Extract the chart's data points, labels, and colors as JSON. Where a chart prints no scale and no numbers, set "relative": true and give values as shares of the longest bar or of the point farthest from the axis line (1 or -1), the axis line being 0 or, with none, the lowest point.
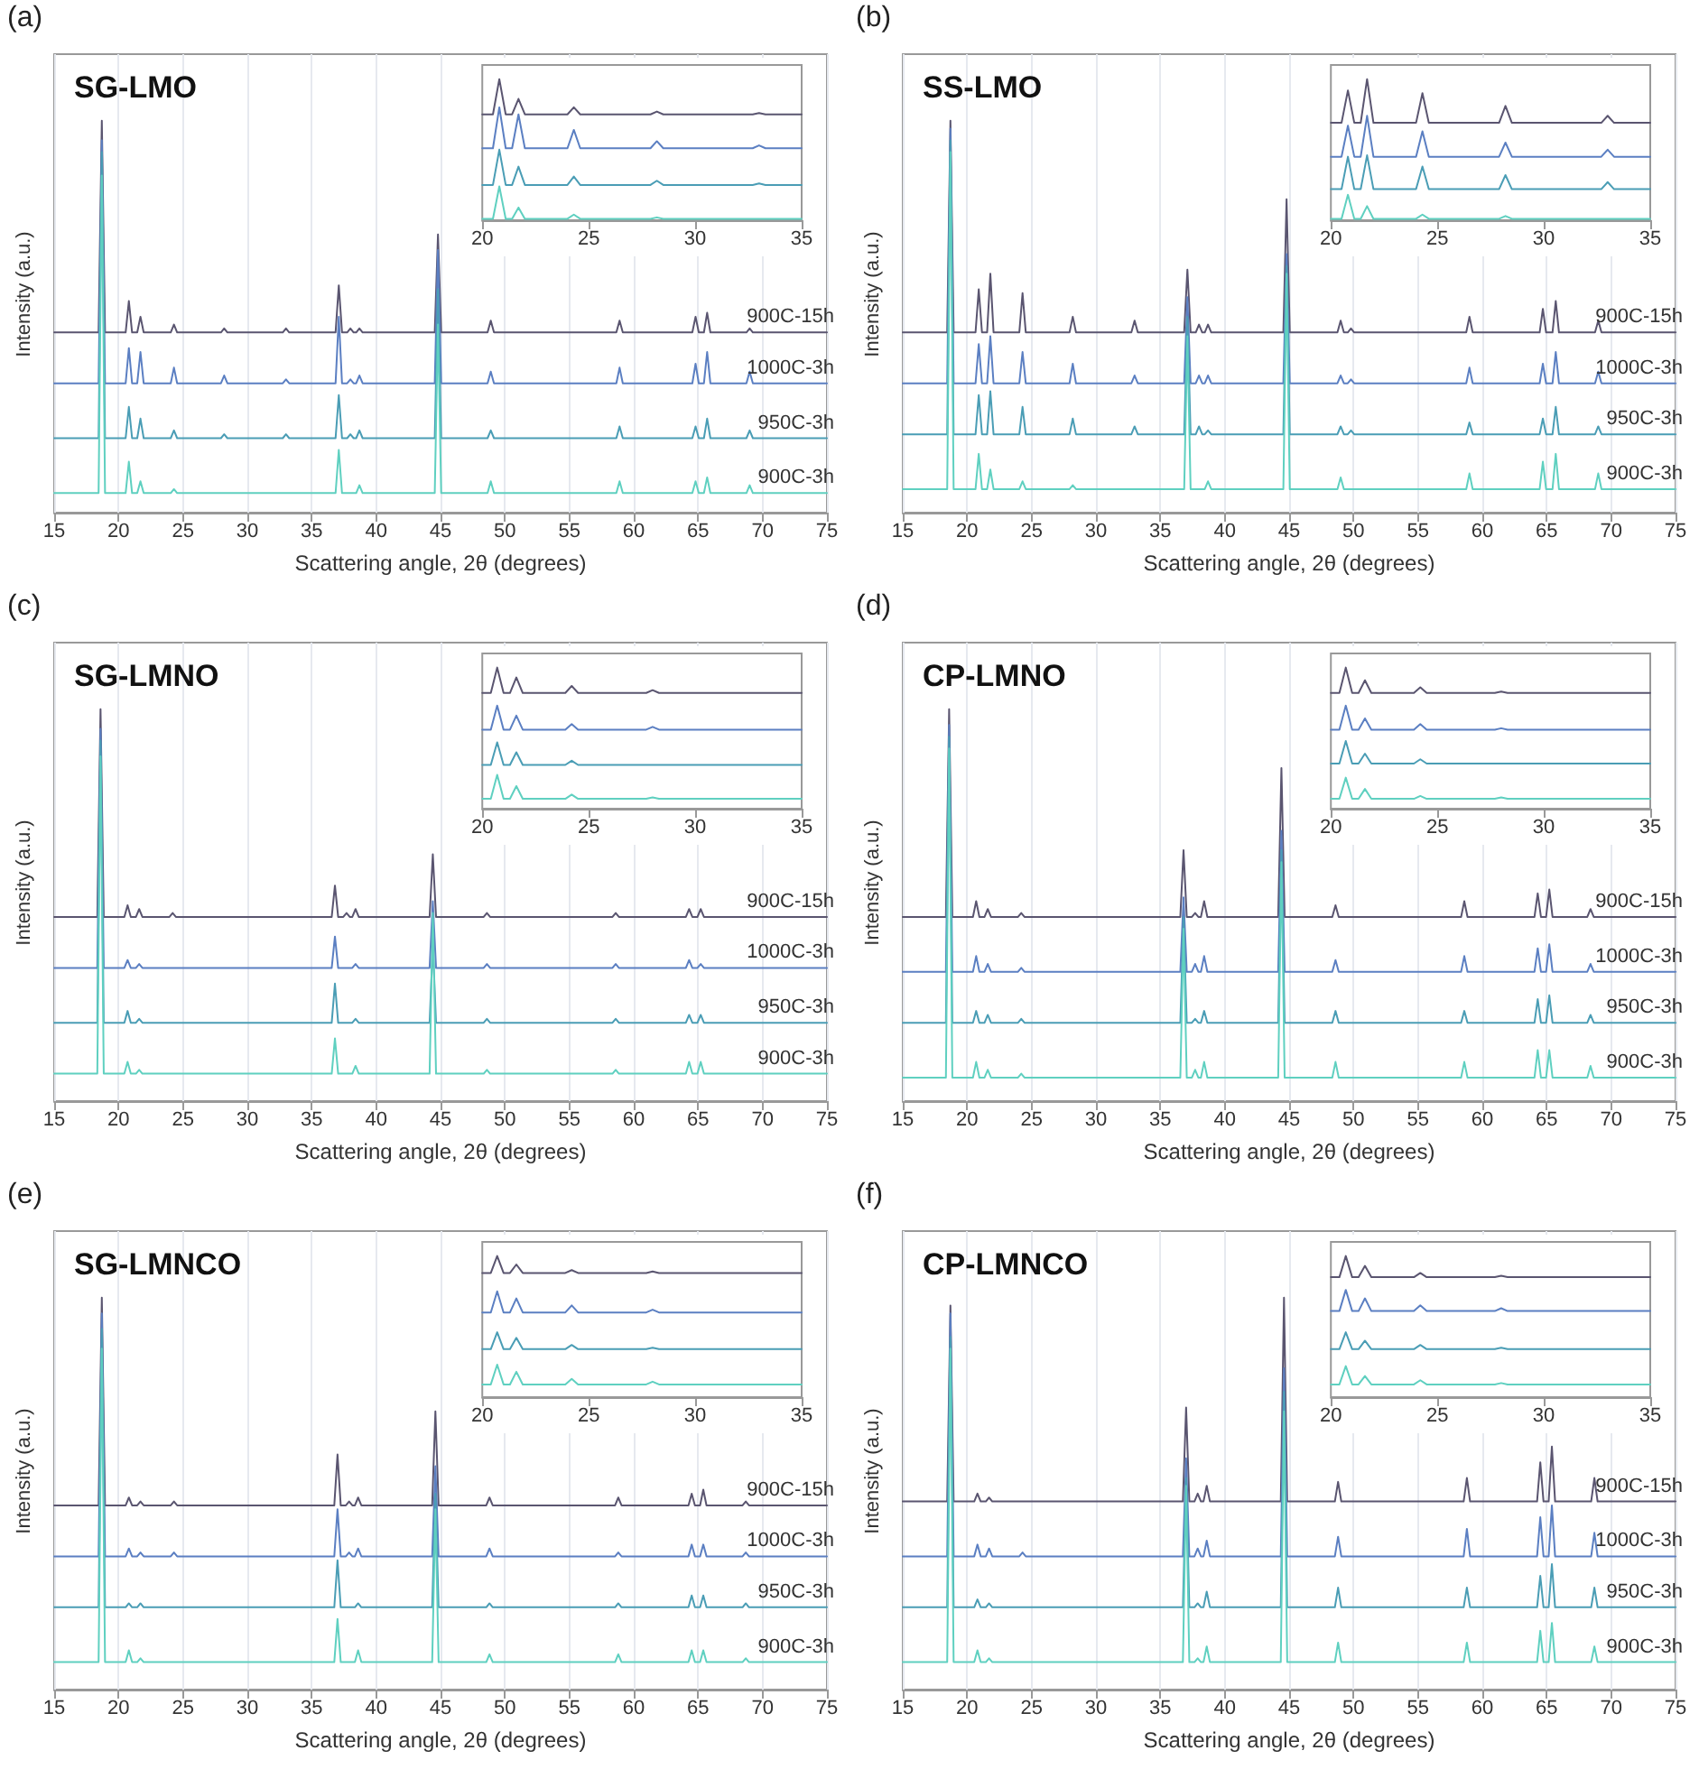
{
  "chart_data": [
    {
      "type": "line",
      "title": "SG-LMO",
      "annotations": [
        "(a)"
      ],
      "xlabel": "Scattering angle, 2θ (degrees)",
      "ylabel": "Intensity (a.u.)",
      "relative": true,
      "xlim": [
        15,
        75
      ],
      "xticks": [
        15,
        20,
        25,
        30,
        35,
        40,
        45,
        50,
        55,
        60,
        65,
        70,
        75
      ],
      "tick_labels": "x",
      "grid": "x",
      "x": [
        15,
        18.45,
        18.7,
        18.95,
        20.55,
        20.8,
        21.05,
        21.45,
        21.7,
        21.95,
        24.05,
        24.3,
        24.55,
        27.95,
        28.2,
        28.45,
        32.75,
        33,
        33.25,
        36.85,
        37.1,
        37.35,
        37.75,
        38,
        38.25,
        38.45,
        38.7,
        38.95,
        44.55,
        44.8,
        45.05,
        48.65,
        48.9,
        49.15,
        58.65,
        58.9,
        59.15,
        64.55,
        64.8,
        65.05,
        65.45,
        65.7,
        65.95,
        68.75,
        69,
        69.25,
        75
      ],
      "series": [
        {
          "name": "900C-15h",
          "color": "#5a5570",
          "values": [
            0.46,
            0.46,
            1,
            0.46,
            0.46,
            0.54,
            0.46,
            0.46,
            0.5,
            0.46,
            0.46,
            0.48,
            0.46,
            0.46,
            0.47,
            0.46,
            0.46,
            0.47,
            0.46,
            0.46,
            0.58,
            0.46,
            0.46,
            0.47,
            0.46,
            0.46,
            0.47,
            0.46,
            0.46,
            0.71,
            0.46,
            0.46,
            0.49,
            0.46,
            0.46,
            0.49,
            0.46,
            0.46,
            0.5,
            0.46,
            0.46,
            0.51,
            0.46,
            0.46,
            0.47,
            0.46,
            0.46
          ]
        },
        {
          "name": "1000C-3h",
          "color": "#5b7fc2",
          "values": [
            0.33,
            0.33,
            0.95,
            0.33,
            0.33,
            0.42,
            0.33,
            0.33,
            0.41,
            0.33,
            0.33,
            0.37,
            0.33,
            0.33,
            0.35,
            0.33,
            0.33,
            0.34,
            0.33,
            0.33,
            0.5,
            0.33,
            0.33,
            0.34,
            0.33,
            0.33,
            0.35,
            0.33,
            0.33,
            0.67,
            0.33,
            0.33,
            0.36,
            0.33,
            0.33,
            0.37,
            0.33,
            0.33,
            0.38,
            0.33,
            0.33,
            0.41,
            0.33,
            0.33,
            0.36,
            0.33,
            0.33
          ]
        },
        {
          "name": "950C-3h",
          "color": "#4a9db5",
          "values": [
            0.19,
            0.19,
            0.92,
            0.19,
            0.19,
            0.27,
            0.19,
            0.19,
            0.24,
            0.19,
            0.19,
            0.21,
            0.19,
            0.19,
            0.2,
            0.19,
            0.19,
            0.2,
            0.19,
            0.19,
            0.3,
            0.19,
            0.19,
            0.2,
            0.19,
            0.19,
            0.21,
            0.19,
            0.19,
            0.57,
            0.19,
            0.19,
            0.21,
            0.19,
            0.19,
            0.22,
            0.19,
            0.19,
            0.22,
            0.19,
            0.19,
            0.24,
            0.19,
            0.19,
            0.21,
            0.19,
            0.19
          ]
        },
        {
          "name": "900C-3h",
          "color": "#5fd0c0",
          "values": [
            0.05,
            0.05,
            0.86,
            0.05,
            0.05,
            0.13,
            0.05,
            0.05,
            0.08,
            0.05,
            0.05,
            0.06,
            0.05,
            0.05,
            0.05,
            0.05,
            0.05,
            0.05,
            0.05,
            0.05,
            0.16,
            0.05,
            0.05,
            0.05,
            0.05,
            0.05,
            0.07,
            0.05,
            0.05,
            0.48,
            0.05,
            0.05,
            0.08,
            0.05,
            0.05,
            0.08,
            0.05,
            0.05,
            0.08,
            0.05,
            0.05,
            0.09,
            0.05,
            0.05,
            0.07,
            0.05,
            0.05
          ]
        }
      ]
    },
    {
      "type": "line",
      "relative": true,
      "xlim": [
        20,
        35
      ],
      "xticks": [
        20,
        25,
        30,
        35
      ],
      "tick_labels": "x",
      "x": [
        20,
        20.5,
        20.8,
        21.1,
        21.4,
        21.7,
        22,
        24,
        24.3,
        24.6,
        27.9,
        28.2,
        28.5,
        32.7,
        33,
        33.3,
        35
      ],
      "series": [
        {
          "color": "#5a5570",
          "values": [
            0.75,
            0.75,
            1,
            0.75,
            0.75,
            0.86,
            0.75,
            0.75,
            0.8,
            0.75,
            0.75,
            0.77,
            0.75,
            0.75,
            0.76,
            0.75,
            0.75
          ]
        },
        {
          "color": "#5b7fc2",
          "values": [
            0.51,
            0.51,
            0.8,
            0.51,
            0.51,
            0.75,
            0.51,
            0.51,
            0.64,
            0.51,
            0.51,
            0.56,
            0.51,
            0.51,
            0.53,
            0.51,
            0.51
          ]
        },
        {
          "color": "#4a9db5",
          "values": [
            0.25,
            0.25,
            0.5,
            0.25,
            0.25,
            0.38,
            0.25,
            0.25,
            0.31,
            0.25,
            0.25,
            0.28,
            0.25,
            0.25,
            0.26,
            0.25,
            0.25
          ]
        },
        {
          "color": "#5fd0c0",
          "values": [
            0.01,
            0.01,
            0.24,
            0.01,
            0.01,
            0.09,
            0.01,
            0.01,
            0.04,
            0.01,
            0.01,
            0.02,
            0.01,
            0.01,
            0.01,
            0.01,
            0.01
          ]
        }
      ]
    },
    {
      "type": "line",
      "title": "SS-LMO",
      "annotations": [
        "(b)"
      ],
      "xlabel": "Scattering angle, 2θ (degrees)",
      "ylabel": "Intensity (a.u.)",
      "relative": true,
      "xlim": [
        15,
        75
      ],
      "xticks": [
        15,
        20,
        25,
        30,
        35,
        40,
        45,
        50,
        55,
        60,
        65,
        70,
        75
      ],
      "tick_labels": "x",
      "grid": "x",
      "x": [
        15,
        18.45,
        18.7,
        18.95,
        20.65,
        20.9,
        21.15,
        21.55,
        21.8,
        22.05,
        24.05,
        24.3,
        24.55,
        27.95,
        28.2,
        28.45,
        32.75,
        33,
        33.25,
        36.85,
        37.1,
        37.35,
        37.75,
        38,
        38.25,
        38.45,
        38.7,
        38.95,
        44.55,
        44.8,
        45.05,
        48.75,
        49,
        49.25,
        49.55,
        49.8,
        50.05,
        58.75,
        59,
        59.25,
        64.45,
        64.7,
        64.95,
        65.45,
        65.7,
        65.95,
        68.75,
        69,
        69.25,
        75
      ],
      "series": [
        {
          "name": "900C-15h",
          "color": "#5a5570",
          "values": [
            0.46,
            0.46,
            1,
            0.46,
            0.46,
            0.57,
            0.46,
            0.46,
            0.61,
            0.46,
            0.46,
            0.56,
            0.46,
            0.46,
            0.5,
            0.46,
            0.46,
            0.49,
            0.46,
            0.46,
            0.62,
            0.46,
            0.46,
            0.48,
            0.46,
            0.46,
            0.48,
            0.46,
            0.46,
            0.8,
            0.46,
            0.46,
            0.49,
            0.46,
            0.46,
            0.47,
            0.46,
            0.46,
            0.5,
            0.46,
            0.46,
            0.52,
            0.46,
            0.46,
            0.54,
            0.46,
            0.46,
            0.49,
            0.46,
            0.46
          ]
        },
        {
          "name": "1000C-3h",
          "color": "#5b7fc2",
          "values": [
            0.33,
            0.33,
            0.98,
            0.33,
            0.33,
            0.43,
            0.33,
            0.33,
            0.45,
            0.33,
            0.33,
            0.41,
            0.33,
            0.33,
            0.38,
            0.33,
            0.33,
            0.35,
            0.33,
            0.33,
            0.55,
            0.33,
            0.33,
            0.35,
            0.33,
            0.33,
            0.35,
            0.33,
            0.33,
            0.66,
            0.33,
            0.33,
            0.35,
            0.33,
            0.33,
            0.34,
            0.33,
            0.33,
            0.37,
            0.33,
            0.33,
            0.38,
            0.33,
            0.33,
            0.41,
            0.33,
            0.33,
            0.36,
            0.33,
            0.33
          ]
        },
        {
          "name": "950C-3h",
          "color": "#4a9db5",
          "values": [
            0.2,
            0.2,
            0.95,
            0.2,
            0.2,
            0.3,
            0.2,
            0.2,
            0.31,
            0.2,
            0.2,
            0.27,
            0.2,
            0.2,
            0.24,
            0.2,
            0.2,
            0.22,
            0.2,
            0.2,
            0.5,
            0.2,
            0.2,
            0.22,
            0.2,
            0.2,
            0.21,
            0.2,
            0.2,
            0.63,
            0.2,
            0.2,
            0.22,
            0.2,
            0.2,
            0.21,
            0.2,
            0.2,
            0.23,
            0.2,
            0.2,
            0.24,
            0.2,
            0.2,
            0.27,
            0.2,
            0.2,
            0.22,
            0.2,
            0.2
          ]
        },
        {
          "name": "900C-3h",
          "color": "#5fd0c0",
          "values": [
            0.06,
            0.06,
            0.92,
            0.06,
            0.06,
            0.15,
            0.06,
            0.06,
            0.11,
            0.06,
            0.06,
            0.08,
            0.06,
            0.06,
            0.07,
            0.06,
            0.06,
            0.06,
            0.06,
            0.06,
            0.45,
            0.06,
            0.06,
            0.06,
            0.06,
            0.06,
            0.08,
            0.06,
            0.06,
            0.61,
            0.06,
            0.06,
            0.09,
            0.06,
            0.06,
            0.06,
            0.06,
            0.06,
            0.1,
            0.06,
            0.06,
            0.13,
            0.06,
            0.06,
            0.15,
            0.06,
            0.06,
            0.1,
            0.06,
            0.06
          ]
        }
      ]
    },
    {
      "type": "line",
      "relative": true,
      "xlim": [
        20,
        35
      ],
      "xticks": [
        20,
        25,
        30,
        35
      ],
      "tick_labels": "x",
      "x": [
        20,
        20.5,
        20.8,
        21.1,
        21.4,
        21.7,
        22,
        24,
        24.3,
        24.6,
        27.9,
        28.2,
        28.5,
        32.7,
        33,
        33.3,
        35
      ],
      "series": [
        {
          "color": "#5a5570",
          "values": [
            0.69,
            0.69,
            0.92,
            0.69,
            0.69,
            1,
            0.69,
            0.69,
            0.9,
            0.69,
            0.69,
            0.81,
            0.69,
            0.69,
            0.74,
            0.69,
            0.69
          ]
        },
        {
          "color": "#5b7fc2",
          "values": [
            0.45,
            0.45,
            0.67,
            0.45,
            0.45,
            0.74,
            0.45,
            0.45,
            0.63,
            0.45,
            0.45,
            0.55,
            0.45,
            0.45,
            0.5,
            0.45,
            0.45
          ]
        },
        {
          "color": "#4a9db5",
          "values": [
            0.22,
            0.22,
            0.45,
            0.22,
            0.22,
            0.46,
            0.22,
            0.22,
            0.38,
            0.22,
            0.22,
            0.32,
            0.22,
            0.22,
            0.27,
            0.22,
            0.22
          ]
        },
        {
          "color": "#5fd0c0",
          "values": [
            0.01,
            0.01,
            0.18,
            0.01,
            0.01,
            0.1,
            0.01,
            0.01,
            0.04,
            0.01,
            0.01,
            0.03,
            0.01,
            0.01,
            0.01,
            0.01,
            0.01
          ]
        }
      ]
    },
    {
      "type": "line",
      "title": "SG-LMNO",
      "annotations": [
        "(c)"
      ],
      "xlabel": "Scattering angle, 2θ (degrees)",
      "ylabel": "Intensity (a.u.)",
      "relative": true,
      "xlim": [
        15,
        75
      ],
      "xticks": [
        15,
        20,
        25,
        30,
        35,
        40,
        45,
        50,
        55,
        60,
        65,
        70,
        75
      ],
      "tick_labels": "x",
      "grid": "x",
      "x": [
        15,
        18.35,
        18.6,
        18.85,
        20.45,
        20.7,
        20.95,
        21.35,
        21.6,
        21.85,
        23.95,
        24.2,
        24.45,
        36.55,
        36.8,
        37.05,
        37.45,
        37.7,
        37.95,
        38.15,
        38.4,
        38.65,
        44.15,
        44.4,
        44.65,
        48.35,
        48.6,
        48.85,
        58.35,
        58.6,
        58.85,
        64.05,
        64.3,
        64.55,
        64.95,
        65.2,
        65.45,
        68.15,
        68.4,
        68.65,
        75
      ],
      "series": [
        {
          "name": "900C-15h",
          "color": "#5a5570",
          "values": [
            0.47,
            0.47,
            1,
            0.47,
            0.47,
            0.5,
            0.47,
            0.47,
            0.49,
            0.47,
            0.47,
            0.48,
            0.47,
            0.47,
            0.55,
            0.47,
            0.47,
            0.48,
            0.47,
            0.47,
            0.49,
            0.47,
            0.47,
            0.63,
            0.47,
            0.47,
            0.48,
            0.47,
            0.47,
            0.48,
            0.47,
            0.47,
            0.49,
            0.47,
            0.47,
            0.49,
            0.47,
            0.47,
            0.47,
            0.47,
            0.47
          ]
        },
        {
          "name": "1000C-3h",
          "color": "#5b7fc2",
          "values": [
            0.34,
            0.34,
            0.95,
            0.34,
            0.34,
            0.36,
            0.34,
            0.34,
            0.35,
            0.34,
            0.34,
            0.34,
            0.34,
            0.34,
            0.42,
            0.34,
            0.34,
            0.34,
            0.34,
            0.34,
            0.35,
            0.34,
            0.34,
            0.51,
            0.34,
            0.34,
            0.35,
            0.34,
            0.34,
            0.35,
            0.34,
            0.34,
            0.36,
            0.34,
            0.34,
            0.35,
            0.34,
            0.34,
            0.34,
            0.34,
            0.34
          ]
        },
        {
          "name": "950C-3h",
          "color": "#4a9db5",
          "values": [
            0.2,
            0.2,
            0.92,
            0.2,
            0.2,
            0.23,
            0.2,
            0.2,
            0.21,
            0.2,
            0.2,
            0.2,
            0.2,
            0.2,
            0.3,
            0.2,
            0.2,
            0.2,
            0.2,
            0.2,
            0.21,
            0.2,
            0.2,
            0.4,
            0.2,
            0.2,
            0.21,
            0.2,
            0.2,
            0.21,
            0.2,
            0.2,
            0.22,
            0.2,
            0.2,
            0.22,
            0.2,
            0.2,
            0.2,
            0.2,
            0.2
          ]
        },
        {
          "name": "900C-3h",
          "color": "#5fd0c0",
          "values": [
            0.07,
            0.07,
            0.88,
            0.07,
            0.07,
            0.1,
            0.07,
            0.07,
            0.08,
            0.07,
            0.07,
            0.07,
            0.07,
            0.07,
            0.16,
            0.07,
            0.07,
            0.07,
            0.07,
            0.07,
            0.09,
            0.07,
            0.07,
            0.48,
            0.07,
            0.07,
            0.08,
            0.07,
            0.07,
            0.08,
            0.07,
            0.07,
            0.1,
            0.07,
            0.07,
            0.1,
            0.07,
            0.07,
            0.07,
            0.07,
            0.07
          ]
        }
      ]
    },
    {
      "type": "line",
      "relative": true,
      "xlim": [
        20,
        35
      ],
      "xticks": [
        20,
        25,
        30,
        35
      ],
      "tick_labels": "x",
      "x": [
        20,
        20.4,
        20.7,
        21,
        21.3,
        21.6,
        21.9,
        23.9,
        24.2,
        24.5,
        27.7,
        28,
        28.3,
        35
      ],
      "series": [
        {
          "color": "#5a5570",
          "values": [
            0.82,
            0.82,
            1,
            0.82,
            0.82,
            0.93,
            0.82,
            0.82,
            0.87,
            0.82,
            0.82,
            0.84,
            0.82,
            0.82
          ]
        },
        {
          "color": "#5b7fc2",
          "values": [
            0.56,
            0.56,
            0.73,
            0.56,
            0.56,
            0.66,
            0.56,
            0.56,
            0.6,
            0.56,
            0.56,
            0.58,
            0.56,
            0.56
          ]
        },
        {
          "color": "#4a9db5",
          "values": [
            0.31,
            0.31,
            0.47,
            0.31,
            0.31,
            0.4,
            0.31,
            0.31,
            0.34,
            0.31,
            0.31,
            0.31,
            0.31,
            0.31
          ]
        },
        {
          "color": "#5fd0c0",
          "values": [
            0.07,
            0.07,
            0.24,
            0.07,
            0.07,
            0.16,
            0.07,
            0.07,
            0.1,
            0.07,
            0.07,
            0.08,
            0.07,
            0.07
          ]
        }
      ]
    },
    {
      "type": "line",
      "title": "CP-LMNO",
      "annotations": [
        "(d)"
      ],
      "xlabel": "Scattering angle, 2θ (degrees)",
      "ylabel": "Intensity (a.u.)",
      "relative": true,
      "xlim": [
        15,
        75
      ],
      "xticks": [
        15,
        20,
        25,
        30,
        35,
        40,
        45,
        50,
        55,
        60,
        65,
        70,
        75
      ],
      "tick_labels": "x",
      "grid": "x",
      "x": [
        15,
        18.35,
        18.6,
        18.85,
        20.45,
        20.7,
        20.95,
        21.35,
        21.6,
        21.85,
        23.95,
        24.2,
        24.45,
        36.55,
        36.8,
        37.05,
        37.45,
        37.7,
        37.95,
        38.15,
        38.4,
        38.65,
        44.15,
        44.4,
        44.65,
        48.35,
        48.6,
        48.85,
        58.35,
        58.6,
        58.85,
        64.05,
        64.3,
        64.55,
        64.95,
        65.2,
        65.45,
        68.15,
        68.4,
        68.65,
        75
      ],
      "series": [
        {
          "name": "900C-15h",
          "color": "#5a5570",
          "values": [
            0.47,
            0.47,
            1,
            0.47,
            0.47,
            0.51,
            0.47,
            0.47,
            0.49,
            0.47,
            0.47,
            0.48,
            0.47,
            0.47,
            0.64,
            0.47,
            0.47,
            0.48,
            0.47,
            0.47,
            0.51,
            0.47,
            0.47,
            0.85,
            0.47,
            0.47,
            0.5,
            0.47,
            0.47,
            0.51,
            0.47,
            0.47,
            0.53,
            0.47,
            0.47,
            0.54,
            0.47,
            0.47,
            0.49,
            0.47,
            0.47
          ]
        },
        {
          "name": "1000C-3h",
          "color": "#5b7fc2",
          "values": [
            0.33,
            0.33,
            0.96,
            0.33,
            0.33,
            0.37,
            0.33,
            0.33,
            0.35,
            0.33,
            0.33,
            0.34,
            0.33,
            0.33,
            0.52,
            0.33,
            0.33,
            0.35,
            0.33,
            0.33,
            0.37,
            0.33,
            0.33,
            0.69,
            0.33,
            0.33,
            0.36,
            0.33,
            0.33,
            0.37,
            0.33,
            0.33,
            0.39,
            0.33,
            0.33,
            0.4,
            0.33,
            0.33,
            0.35,
            0.33,
            0.33
          ]
        },
        {
          "name": "950C-3h",
          "color": "#4a9db5",
          "values": [
            0.2,
            0.2,
            0.93,
            0.2,
            0.2,
            0.23,
            0.2,
            0.2,
            0.22,
            0.2,
            0.2,
            0.21,
            0.2,
            0.2,
            0.47,
            0.2,
            0.2,
            0.21,
            0.2,
            0.2,
            0.23,
            0.2,
            0.2,
            0.64,
            0.2,
            0.2,
            0.23,
            0.2,
            0.2,
            0.23,
            0.2,
            0.2,
            0.26,
            0.2,
            0.2,
            0.27,
            0.2,
            0.2,
            0.22,
            0.2,
            0.2
          ]
        },
        {
          "name": "900C-3h",
          "color": "#5fd0c0",
          "values": [
            0.06,
            0.06,
            0.9,
            0.06,
            0.06,
            0.1,
            0.06,
            0.06,
            0.08,
            0.06,
            0.06,
            0.07,
            0.06,
            0.06,
            0.44,
            0.06,
            0.06,
            0.08,
            0.06,
            0.06,
            0.1,
            0.06,
            0.06,
            0.61,
            0.06,
            0.06,
            0.1,
            0.06,
            0.06,
            0.1,
            0.06,
            0.06,
            0.13,
            0.06,
            0.06,
            0.13,
            0.06,
            0.06,
            0.09,
            0.06,
            0.06
          ]
        }
      ]
    },
    {
      "type": "line",
      "relative": true,
      "xlim": [
        20,
        35
      ],
      "xticks": [
        20,
        25,
        30,
        35
      ],
      "tick_labels": "x",
      "x": [
        20,
        20.4,
        20.7,
        21,
        21.3,
        21.6,
        21.9,
        23.9,
        24.2,
        24.5,
        27.7,
        28,
        28.3,
        35
      ],
      "series": [
        {
          "color": "#5a5570",
          "values": [
            0.82,
            0.82,
            1,
            0.82,
            0.82,
            0.91,
            0.82,
            0.82,
            0.86,
            0.82,
            0.82,
            0.83,
            0.82,
            0.82
          ]
        },
        {
          "color": "#5b7fc2",
          "values": [
            0.56,
            0.56,
            0.73,
            0.56,
            0.56,
            0.64,
            0.56,
            0.56,
            0.6,
            0.56,
            0.56,
            0.57,
            0.56,
            0.56
          ]
        },
        {
          "color": "#4a9db5",
          "values": [
            0.32,
            0.32,
            0.48,
            0.32,
            0.32,
            0.39,
            0.32,
            0.32,
            0.35,
            0.32,
            0.32,
            0.32,
            0.32,
            0.32
          ]
        },
        {
          "color": "#5fd0c0",
          "values": [
            0.07,
            0.07,
            0.22,
            0.07,
            0.07,
            0.14,
            0.07,
            0.07,
            0.09,
            0.07,
            0.07,
            0.08,
            0.07,
            0.07
          ]
        }
      ]
    },
    {
      "type": "line",
      "title": "SG-LMNCO",
      "annotations": [
        "(e)"
      ],
      "xlabel": "Scattering angle, 2θ (degrees)",
      "ylabel": "Intensity (a.u.)",
      "relative": true,
      "xlim": [
        15,
        75
      ],
      "xticks": [
        15,
        20,
        25,
        30,
        35,
        40,
        45,
        50,
        55,
        60,
        65,
        70,
        75
      ],
      "tick_labels": "x",
      "grid": "x",
      "x": [
        15,
        18.45,
        18.7,
        18.95,
        20.55,
        20.8,
        21.05,
        21.45,
        21.7,
        21.95,
        24.05,
        24.3,
        24.55,
        36.75,
        37,
        37.25,
        37.65,
        37.9,
        38.15,
        38.35,
        38.6,
        38.85,
        44.35,
        44.6,
        44.85,
        48.55,
        48.8,
        49.05,
        58.55,
        58.8,
        59.05,
        64.25,
        64.5,
        64.75,
        65.15,
        65.4,
        65.65,
        68.45,
        68.7,
        68.95,
        75
      ],
      "series": [
        {
          "name": "900C-15h",
          "color": "#5a5570",
          "values": [
            0.47,
            0.47,
            1,
            0.47,
            0.47,
            0.49,
            0.47,
            0.47,
            0.48,
            0.47,
            0.47,
            0.48,
            0.47,
            0.47,
            0.6,
            0.47,
            0.47,
            0.48,
            0.47,
            0.47,
            0.49,
            0.47,
            0.47,
            0.71,
            0.47,
            0.47,
            0.49,
            0.47,
            0.47,
            0.49,
            0.47,
            0.47,
            0.5,
            0.47,
            0.47,
            0.51,
            0.47,
            0.47,
            0.48,
            0.47,
            0.47
          ]
        },
        {
          "name": "1000C-3h",
          "color": "#5b7fc2",
          "values": [
            0.34,
            0.34,
            0.96,
            0.34,
            0.34,
            0.36,
            0.34,
            0.34,
            0.35,
            0.34,
            0.34,
            0.35,
            0.34,
            0.34,
            0.46,
            0.34,
            0.34,
            0.35,
            0.34,
            0.34,
            0.36,
            0.34,
            0.34,
            0.57,
            0.34,
            0.34,
            0.36,
            0.34,
            0.34,
            0.35,
            0.34,
            0.34,
            0.37,
            0.34,
            0.34,
            0.37,
            0.34,
            0.34,
            0.35,
            0.34,
            0.34
          ]
        },
        {
          "name": "950C-3h",
          "color": "#4a9db5",
          "values": [
            0.21,
            0.21,
            0.92,
            0.21,
            0.21,
            0.22,
            0.21,
            0.21,
            0.22,
            0.21,
            0.21,
            0.21,
            0.21,
            0.21,
            0.33,
            0.21,
            0.21,
            0.21,
            0.21,
            0.21,
            0.22,
            0.21,
            0.21,
            0.5,
            0.21,
            0.21,
            0.22,
            0.21,
            0.21,
            0.22,
            0.21,
            0.21,
            0.24,
            0.21,
            0.21,
            0.24,
            0.21,
            0.21,
            0.22,
            0.21,
            0.21
          ]
        },
        {
          "name": "900C-3h",
          "color": "#5fd0c0",
          "values": [
            0.07,
            0.07,
            0.87,
            0.07,
            0.07,
            0.1,
            0.07,
            0.07,
            0.08,
            0.07,
            0.07,
            0.07,
            0.07,
            0.07,
            0.18,
            0.07,
            0.07,
            0.07,
            0.07,
            0.07,
            0.1,
            0.07,
            0.07,
            0.46,
            0.07,
            0.07,
            0.09,
            0.07,
            0.07,
            0.09,
            0.07,
            0.07,
            0.1,
            0.07,
            0.07,
            0.1,
            0.07,
            0.07,
            0.08,
            0.07,
            0.07
          ]
        }
      ]
    },
    {
      "type": "line",
      "relative": true,
      "xlim": [
        20,
        35
      ],
      "xticks": [
        20,
        25,
        30,
        35
      ],
      "tick_labels": "x",
      "x": [
        20,
        20.4,
        20.7,
        21,
        21.3,
        21.6,
        21.9,
        23.9,
        24.2,
        24.5,
        27.7,
        28,
        28.3,
        35
      ],
      "series": [
        {
          "color": "#5a5570",
          "values": [
            0.88,
            0.88,
            1,
            0.88,
            0.88,
            0.94,
            0.88,
            0.88,
            0.9,
            0.88,
            0.88,
            0.89,
            0.88,
            0.88
          ]
        },
        {
          "color": "#5b7fc2",
          "values": [
            0.6,
            0.6,
            0.75,
            0.6,
            0.6,
            0.7,
            0.6,
            0.6,
            0.65,
            0.6,
            0.6,
            0.62,
            0.6,
            0.6
          ]
        },
        {
          "color": "#4a9db5",
          "values": [
            0.34,
            0.34,
            0.46,
            0.34,
            0.34,
            0.42,
            0.34,
            0.34,
            0.37,
            0.34,
            0.34,
            0.35,
            0.34,
            0.34
          ]
        },
        {
          "color": "#5fd0c0",
          "values": [
            0.09,
            0.09,
            0.23,
            0.09,
            0.09,
            0.18,
            0.09,
            0.09,
            0.13,
            0.09,
            0.09,
            0.11,
            0.09,
            0.09
          ]
        }
      ]
    },
    {
      "type": "line",
      "title": "CP-LMNCO",
      "annotations": [
        "(f)"
      ],
      "xlabel": "Scattering angle, 2θ (degrees)",
      "ylabel": "Intensity (a.u.)",
      "relative": true,
      "xlim": [
        15,
        75
      ],
      "xticks": [
        15,
        20,
        25,
        30,
        35,
        40,
        45,
        50,
        55,
        60,
        65,
        70,
        75
      ],
      "tick_labels": "x",
      "grid": "x",
      "x": [
        15,
        18.45,
        18.7,
        18.95,
        20.55,
        20.8,
        21.05,
        21.45,
        21.7,
        21.95,
        24.05,
        24.3,
        24.55,
        36.75,
        37,
        37.25,
        37.65,
        37.9,
        38.15,
        38.35,
        38.6,
        38.85,
        44.35,
        44.6,
        44.85,
        48.55,
        48.8,
        49.05,
        58.55,
        58.8,
        59.05,
        64.25,
        64.5,
        64.75,
        65.15,
        65.4,
        65.65,
        68.45,
        68.7,
        68.95,
        75
      ],
      "series": [
        {
          "name": "900C-15h",
          "color": "#5a5570",
          "values": [
            0.48,
            0.48,
            0.98,
            0.48,
            0.48,
            0.5,
            0.48,
            0.48,
            0.49,
            0.48,
            0.48,
            0.48,
            0.48,
            0.48,
            0.72,
            0.48,
            0.48,
            0.5,
            0.48,
            0.48,
            0.52,
            0.48,
            0.48,
            1,
            0.48,
            0.48,
            0.53,
            0.48,
            0.48,
            0.54,
            0.48,
            0.48,
            0.58,
            0.48,
            0.48,
            0.62,
            0.48,
            0.48,
            0.54,
            0.48,
            0.48
          ]
        },
        {
          "name": "1000C-3h",
          "color": "#5b7fc2",
          "values": [
            0.34,
            0.34,
            0.96,
            0.34,
            0.34,
            0.37,
            0.34,
            0.34,
            0.36,
            0.34,
            0.34,
            0.35,
            0.34,
            0.34,
            0.59,
            0.34,
            0.34,
            0.36,
            0.34,
            0.34,
            0.38,
            0.34,
            0.34,
            0.82,
            0.34,
            0.34,
            0.39,
            0.34,
            0.34,
            0.41,
            0.34,
            0.34,
            0.44,
            0.34,
            0.34,
            0.47,
            0.34,
            0.34,
            0.4,
            0.34,
            0.34
          ]
        },
        {
          "name": "950C-3h",
          "color": "#4a9db5",
          "values": [
            0.21,
            0.21,
            0.9,
            0.21,
            0.21,
            0.23,
            0.21,
            0.21,
            0.22,
            0.21,
            0.21,
            0.21,
            0.21,
            0.21,
            0.54,
            0.21,
            0.21,
            0.22,
            0.21,
            0.21,
            0.25,
            0.21,
            0.21,
            0.76,
            0.21,
            0.21,
            0.26,
            0.21,
            0.21,
            0.26,
            0.21,
            0.21,
            0.29,
            0.21,
            0.21,
            0.32,
            0.21,
            0.21,
            0.26,
            0.21,
            0.21
          ]
        },
        {
          "name": "900C-3h",
          "color": "#5fd0c0",
          "values": [
            0.07,
            0.07,
            0.87,
            0.07,
            0.07,
            0.1,
            0.07,
            0.07,
            0.08,
            0.07,
            0.07,
            0.07,
            0.07,
            0.07,
            0.52,
            0.07,
            0.07,
            0.08,
            0.07,
            0.07,
            0.11,
            0.07,
            0.07,
            0.71,
            0.07,
            0.07,
            0.12,
            0.07,
            0.07,
            0.12,
            0.07,
            0.07,
            0.15,
            0.07,
            0.07,
            0.17,
            0.07,
            0.07,
            0.11,
            0.07,
            0.07
          ]
        }
      ]
    },
    {
      "type": "line",
      "relative": true,
      "xlim": [
        20,
        35
      ],
      "xticks": [
        20,
        25,
        30,
        35
      ],
      "tick_labels": "x",
      "x": [
        20,
        20.4,
        20.7,
        21,
        21.3,
        21.6,
        21.9,
        23.9,
        24.2,
        24.5,
        27.7,
        28,
        28.3,
        35
      ],
      "series": [
        {
          "color": "#5a5570",
          "values": [
            0.85,
            0.85,
            1,
            0.85,
            0.85,
            0.93,
            0.85,
            0.85,
            0.88,
            0.85,
            0.85,
            0.86,
            0.85,
            0.85
          ]
        },
        {
          "color": "#5b7fc2",
          "values": [
            0.61,
            0.61,
            0.76,
            0.61,
            0.61,
            0.7,
            0.61,
            0.61,
            0.65,
            0.61,
            0.61,
            0.63,
            0.61,
            0.61
          ]
        },
        {
          "color": "#4a9db5",
          "values": [
            0.34,
            0.34,
            0.46,
            0.34,
            0.34,
            0.4,
            0.34,
            0.34,
            0.37,
            0.34,
            0.34,
            0.35,
            0.34,
            0.34
          ]
        },
        {
          "color": "#5fd0c0",
          "values": [
            0.09,
            0.09,
            0.22,
            0.09,
            0.09,
            0.15,
            0.09,
            0.09,
            0.12,
            0.09,
            0.09,
            0.1,
            0.09,
            0.09
          ]
        }
      ]
    }
  ]
}
